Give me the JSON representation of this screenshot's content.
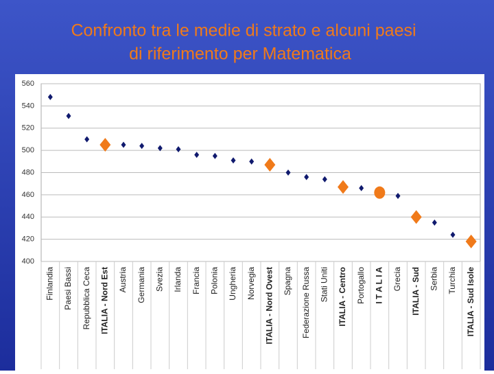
{
  "chart_data": {
    "type": "scatter",
    "title": [
      "Confronto tra le medie di strato e alcuni paesi",
      "di riferimento per Matematica"
    ],
    "categories": [
      "Finlandia",
      "Paesi Bassi",
      "Repubblica Ceca",
      "ITALIA - Nord Est",
      "Austria",
      "Germania",
      "Svezia",
      "Irlanda",
      "Francia",
      "Polonia",
      "Ungheria",
      "Norvegia",
      "ITALIA - Nord Ovest",
      "Spagna",
      "Federazione Russa",
      "Stati Uniti",
      "ITALIA - Centro",
      "Portogallo",
      "I T A L I A",
      "Grecia",
      "ITALIA - Sud",
      "Serbia",
      "Turchia",
      "ITALIA - Sud Isole"
    ],
    "series": [
      {
        "color": "#101a6e",
        "marker": "diamond",
        "values": [
          548,
          531,
          510,
          null,
          505,
          504,
          502,
          501,
          496,
          495,
          491,
          490,
          null,
          480,
          476,
          474,
          null,
          466,
          null,
          459,
          null,
          435,
          424,
          null
        ]
      },
      {
        "color": "#f07a1a",
        "marker": "big-diamond",
        "values": [
          null,
          null,
          null,
          505,
          null,
          null,
          null,
          null,
          null,
          null,
          null,
          null,
          487,
          null,
          null,
          null,
          467,
          null,
          null,
          null,
          440,
          null,
          null,
          418
        ]
      },
      {
        "color": "#f07a1a",
        "marker": "circle",
        "values": [
          null,
          null,
          null,
          null,
          null,
          null,
          null,
          null,
          null,
          null,
          null,
          null,
          null,
          null,
          null,
          null,
          null,
          null,
          462,
          null,
          null,
          null,
          null,
          null
        ]
      }
    ],
    "ylim": [
      400,
      560
    ],
    "yticks": [
      400,
      420,
      440,
      460,
      480,
      500,
      520,
      540,
      560
    ],
    "grid": true
  }
}
